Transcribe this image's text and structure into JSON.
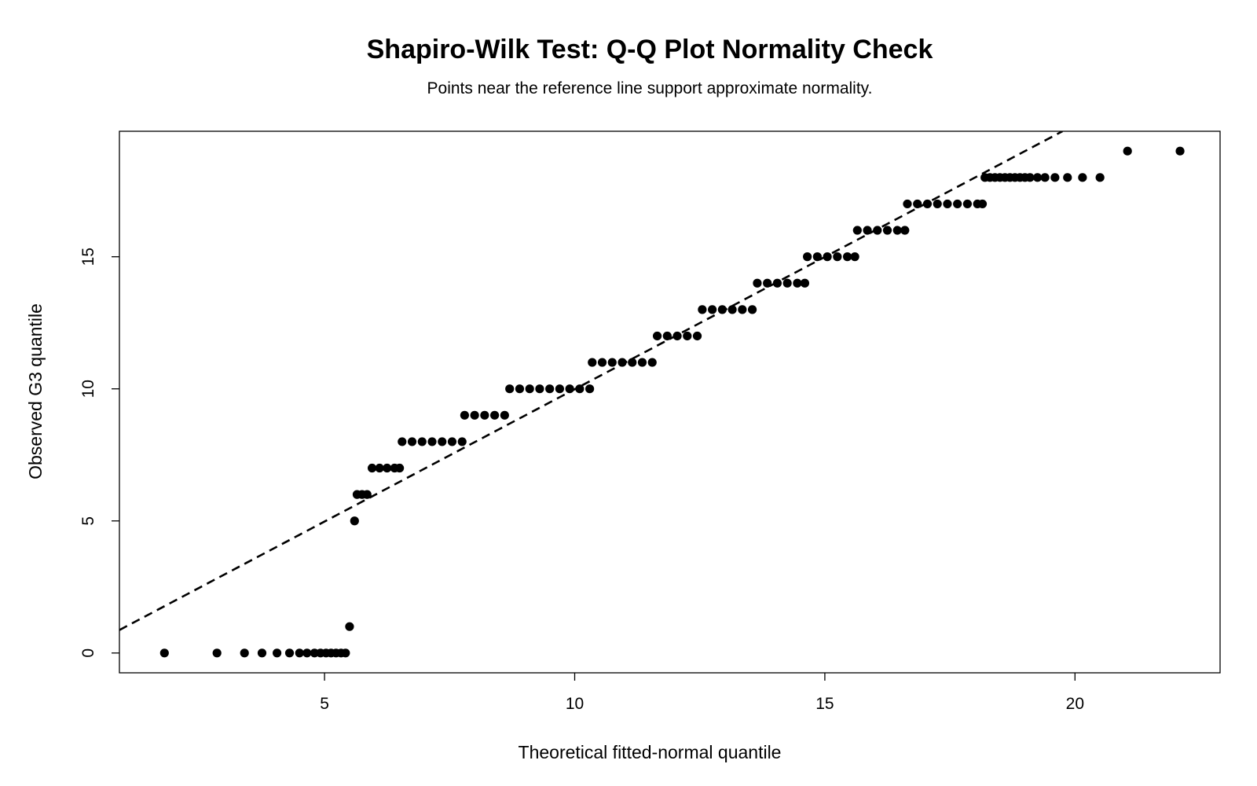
{
  "chart_data": {
    "type": "scatter",
    "title": "Shapiro-Wilk Test: Q-Q Plot Normality Check",
    "subtitle": "Points near the reference line support approximate normality.",
    "xlabel": "Theoretical fitted-normal quantile",
    "ylabel": "Observed G3 quantile",
    "xlim": [
      0.9,
      22.9
    ],
    "ylim": [
      -0.75,
      19.75
    ],
    "xticks": [
      5,
      10,
      15,
      20
    ],
    "yticks": [
      0,
      5,
      10,
      15
    ],
    "x_tick_labels": [
      "5",
      "10",
      "15",
      "20"
    ],
    "y_tick_labels": [
      "0",
      "5",
      "10",
      "15"
    ],
    "grid": false,
    "legend": "none",
    "point_color": "#000000",
    "reference_line": {
      "style": "dashed",
      "color": "#000000",
      "points": [
        [
          0.9,
          0.87
        ],
        [
          19.75,
          19.75
        ]
      ]
    },
    "series": [
      {
        "points": [
          [
            1.8,
            0
          ],
          [
            2.85,
            0
          ],
          [
            3.4,
            0
          ],
          [
            3.75,
            0
          ],
          [
            4.05,
            0
          ],
          [
            4.3,
            0
          ],
          [
            4.5,
            0
          ],
          [
            4.65,
            0
          ],
          [
            4.8,
            0
          ],
          [
            4.92,
            0
          ],
          [
            5.03,
            0
          ],
          [
            5.13,
            0
          ],
          [
            5.23,
            0
          ],
          [
            5.33,
            0
          ],
          [
            5.42,
            0
          ],
          [
            5.5,
            1
          ],
          [
            5.6,
            5
          ],
          [
            5.65,
            6
          ],
          [
            5.75,
            6
          ],
          [
            5.85,
            6
          ],
          [
            5.95,
            7
          ],
          [
            6.1,
            7
          ],
          [
            6.25,
            7
          ],
          [
            6.4,
            7
          ],
          [
            6.5,
            7
          ],
          [
            6.55,
            8
          ],
          [
            6.75,
            8
          ],
          [
            6.95,
            8
          ],
          [
            7.15,
            8
          ],
          [
            7.35,
            8
          ],
          [
            7.55,
            8
          ],
          [
            7.75,
            8
          ],
          [
            7.8,
            9
          ],
          [
            8.0,
            9
          ],
          [
            8.2,
            9
          ],
          [
            8.4,
            9
          ],
          [
            8.6,
            9
          ],
          [
            8.7,
            10
          ],
          [
            8.9,
            10
          ],
          [
            9.1,
            10
          ],
          [
            9.3,
            10
          ],
          [
            9.5,
            10
          ],
          [
            9.7,
            10
          ],
          [
            9.9,
            10
          ],
          [
            10.1,
            10
          ],
          [
            10.3,
            10
          ],
          [
            10.35,
            11
          ],
          [
            10.55,
            11
          ],
          [
            10.75,
            11
          ],
          [
            10.95,
            11
          ],
          [
            11.15,
            11
          ],
          [
            11.35,
            11
          ],
          [
            11.55,
            11
          ],
          [
            11.65,
            12
          ],
          [
            11.85,
            12
          ],
          [
            12.05,
            12
          ],
          [
            12.25,
            12
          ],
          [
            12.45,
            12
          ],
          [
            12.55,
            13
          ],
          [
            12.75,
            13
          ],
          [
            12.95,
            13
          ],
          [
            13.15,
            13
          ],
          [
            13.35,
            13
          ],
          [
            13.55,
            13
          ],
          [
            13.65,
            14
          ],
          [
            13.85,
            14
          ],
          [
            14.05,
            14
          ],
          [
            14.25,
            14
          ],
          [
            14.45,
            14
          ],
          [
            14.6,
            14
          ],
          [
            14.65,
            15
          ],
          [
            14.85,
            15
          ],
          [
            15.05,
            15
          ],
          [
            15.25,
            15
          ],
          [
            15.45,
            15
          ],
          [
            15.6,
            15
          ],
          [
            15.65,
            16
          ],
          [
            15.85,
            16
          ],
          [
            16.05,
            16
          ],
          [
            16.25,
            16
          ],
          [
            16.45,
            16
          ],
          [
            16.6,
            16
          ],
          [
            16.65,
            17
          ],
          [
            16.85,
            17
          ],
          [
            17.05,
            17
          ],
          [
            17.25,
            17
          ],
          [
            17.45,
            17
          ],
          [
            17.65,
            17
          ],
          [
            17.85,
            17
          ],
          [
            18.05,
            17
          ],
          [
            18.15,
            17
          ],
          [
            18.2,
            18
          ],
          [
            18.3,
            18
          ],
          [
            18.4,
            18
          ],
          [
            18.5,
            18
          ],
          [
            18.6,
            18
          ],
          [
            18.7,
            18
          ],
          [
            18.8,
            18
          ],
          [
            18.9,
            18
          ],
          [
            19.0,
            18
          ],
          [
            19.1,
            18
          ],
          [
            19.25,
            18
          ],
          [
            19.4,
            18
          ],
          [
            19.6,
            18
          ],
          [
            19.85,
            18
          ],
          [
            20.15,
            18
          ],
          [
            20.5,
            18
          ],
          [
            21.05,
            19
          ],
          [
            22.1,
            19
          ]
        ]
      }
    ]
  }
}
